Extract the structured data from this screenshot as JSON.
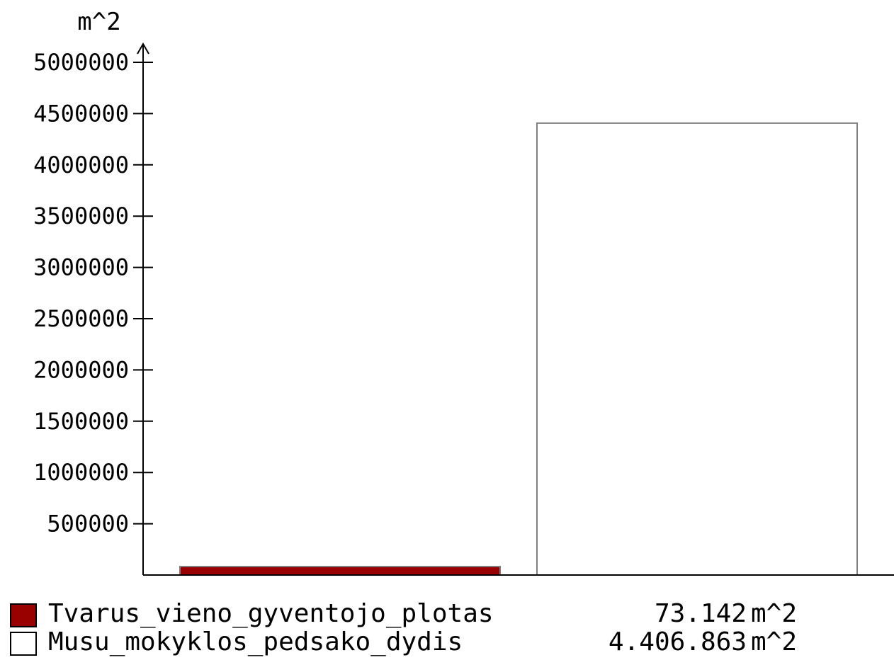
{
  "chart_data": {
    "type": "bar",
    "ylabel": "m^2",
    "ylim": [
      0,
      5000000
    ],
    "yticks": [
      "500000",
      "1000000",
      "1500000",
      "2000000",
      "2500000",
      "3000000",
      "3500000",
      "4000000",
      "4500000",
      "5000000"
    ],
    "grid": false,
    "legend_placement": "bottom",
    "categories": [
      "Tvarus_vieno_gyventojo_plotas",
      "Musu_mokyklos_pedsako_dydis"
    ],
    "values": [
      73142,
      4406863
    ],
    "colors": [
      "#990000",
      "#ffffff"
    ]
  },
  "legend": {
    "items": [
      {
        "label": "Tvarus_vieno_gyventojo_plotas",
        "value": "73.142",
        "unit": "m^2",
        "color": "#990000"
      },
      {
        "label": "Musu_mokyklos_pedsako_dydis",
        "value": "4.406.863",
        "unit": "m^2",
        "color": "#ffffff"
      }
    ]
  }
}
